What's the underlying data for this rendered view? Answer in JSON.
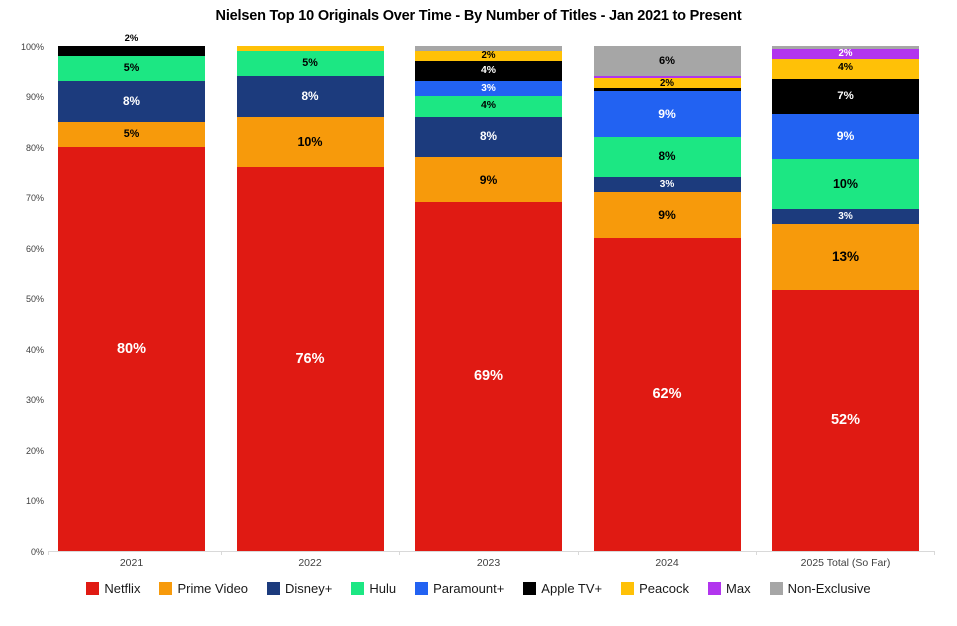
{
  "title": "Nielsen Top 10 Originals Over Time - By Number of Titles - Jan 2021 to Present",
  "chart_data": {
    "type": "bar",
    "stacked": true,
    "title": "Nielsen Top 10 Originals Over Time - By Number of Titles - Jan 2021 to Present",
    "categories": [
      "2021",
      "2022",
      "2023",
      "2024",
      "2025 Total (So Far)"
    ],
    "y_axis": {
      "min": 0,
      "max": 100,
      "ticks": [
        "0%",
        "10%",
        "20%",
        "30%",
        "40%",
        "50%",
        "60%",
        "70%",
        "80%",
        "90%",
        "100%"
      ]
    },
    "grid": false,
    "legend_position": "bottom",
    "legend": [
      "Netflix",
      "Prime Video",
      "Disney+",
      "Hulu",
      "Paramount+",
      "Apple TV+",
      "Peacock",
      "Max",
      "Non-Exclusive"
    ],
    "series_colors": {
      "Netflix": {
        "fill": "#E01A13",
        "text": "#FFFFFF"
      },
      "Prime Video": {
        "fill": "#F79A0B",
        "text": "#000000"
      },
      "Disney+": {
        "fill": "#1C3B7D",
        "text": "#FFFFFF"
      },
      "Hulu": {
        "fill": "#1CE783",
        "text": "#000000"
      },
      "Paramount+": {
        "fill": "#2262F2",
        "text": "#FFFFFF"
      },
      "Apple TV+": {
        "fill": "#000000",
        "text": "#FFFFFF"
      },
      "Peacock": {
        "fill": "#FFC107",
        "text": "#000000"
      },
      "Max": {
        "fill": "#B235EE",
        "text": "#FFFFFF"
      },
      "Non-Exclusive": {
        "fill": "#A6A6A6",
        "text": "#000000"
      }
    },
    "bars": [
      {
        "category": "2021",
        "segments": [
          {
            "name": "Netflix",
            "value": 80,
            "label": "80%"
          },
          {
            "name": "Prime Video",
            "value": 5,
            "label": "5%"
          },
          {
            "name": "Disney+",
            "value": 8,
            "label": "8%"
          },
          {
            "name": "Hulu",
            "value": 5,
            "label": "5%"
          },
          {
            "name": "Apple TV+",
            "value": 2,
            "label": "2%",
            "label_position": "above"
          }
        ]
      },
      {
        "category": "2022",
        "segments": [
          {
            "name": "Netflix",
            "value": 76,
            "label": "76%"
          },
          {
            "name": "Prime Video",
            "value": 10,
            "label": "10%"
          },
          {
            "name": "Disney+",
            "value": 8,
            "label": "8%"
          },
          {
            "name": "Hulu",
            "value": 5,
            "label": "5%"
          },
          {
            "name": "Peacock",
            "value": 1
          }
        ]
      },
      {
        "category": "2023",
        "segments": [
          {
            "name": "Netflix",
            "value": 69,
            "label": "69%"
          },
          {
            "name": "Prime Video",
            "value": 9,
            "label": "9%"
          },
          {
            "name": "Disney+",
            "value": 8,
            "label": "8%"
          },
          {
            "name": "Hulu",
            "value": 4,
            "label": "4%"
          },
          {
            "name": "Paramount+",
            "value": 3,
            "label": "3%"
          },
          {
            "name": "Apple TV+",
            "value": 4,
            "label": "4%"
          },
          {
            "name": "Peacock",
            "value": 2,
            "label": "2%"
          },
          {
            "name": "Non-Exclusive",
            "value": 1
          }
        ]
      },
      {
        "category": "2024",
        "segments": [
          {
            "name": "Netflix",
            "value": 62,
            "label": "62%"
          },
          {
            "name": "Prime Video",
            "value": 9,
            "label": "9%"
          },
          {
            "name": "Disney+",
            "value": 3,
            "label": "3%"
          },
          {
            "name": "Hulu",
            "value": 8,
            "label": "8%"
          },
          {
            "name": "Paramount+",
            "value": 9,
            "label": "9%"
          },
          {
            "name": "Apple TV+",
            "value": 0.6
          },
          {
            "name": "Peacock",
            "value": 2,
            "label": "2%"
          },
          {
            "name": "Max",
            "value": 0.4
          },
          {
            "name": "Non-Exclusive",
            "value": 6,
            "label": "6%"
          }
        ]
      },
      {
        "category": "2025 Total (So Far)",
        "segments": [
          {
            "name": "Netflix",
            "value": 52,
            "label": "52%"
          },
          {
            "name": "Prime Video",
            "value": 13,
            "label": "13%"
          },
          {
            "name": "Disney+",
            "value": 3,
            "label": "3%"
          },
          {
            "name": "Hulu",
            "value": 10,
            "label": "10%"
          },
          {
            "name": "Paramount+",
            "value": 9,
            "label": "9%"
          },
          {
            "name": "Apple TV+",
            "value": 7,
            "label": "7%"
          },
          {
            "name": "Peacock",
            "value": 4,
            "label": "4%"
          },
          {
            "name": "Max",
            "value": 2,
            "label": "2%"
          },
          {
            "name": "Non-Exclusive",
            "value": 0.5
          }
        ]
      }
    ]
  },
  "layout_colors": {
    "axis_line": "#D9D9D9",
    "axis_text": "#404040",
    "legend_text": "#1A1A1A"
  }
}
